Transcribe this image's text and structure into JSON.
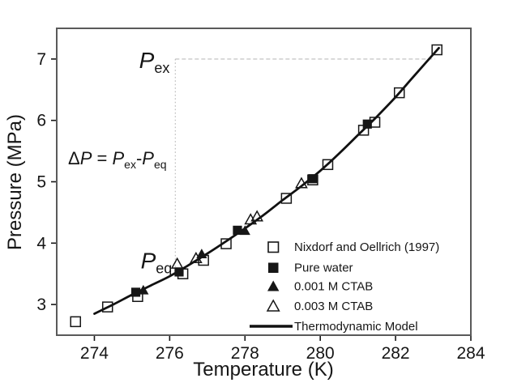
{
  "chart_data": {
    "type": "scatter",
    "title": "",
    "xlabel": "Temperature (K)",
    "ylabel": "Pressure (MPa)",
    "xlim": [
      273,
      284
    ],
    "ylim": [
      2.5,
      7.5
    ],
    "xticks": [
      274,
      276,
      278,
      280,
      282,
      284
    ],
    "yticks": [
      3,
      4,
      5,
      6,
      7
    ],
    "grid": false,
    "legend_position": "inside lower right",
    "colors": {
      "marker": "#161616",
      "line": "#111111",
      "guide": "#bcbcbc",
      "frame": "#5a5a5a"
    },
    "series": [
      {
        "name": "Nixdorf and Oellrich (1997)",
        "marker": "open-square",
        "points": [
          [
            273.5,
            2.72
          ],
          [
            274.35,
            2.96
          ],
          [
            275.15,
            3.13
          ],
          [
            276.35,
            3.5
          ],
          [
            276.9,
            3.72
          ],
          [
            277.5,
            3.99
          ],
          [
            279.1,
            4.73
          ],
          [
            279.8,
            5.03
          ],
          [
            280.2,
            5.28
          ],
          [
            281.15,
            5.84
          ],
          [
            281.45,
            5.97
          ],
          [
            282.1,
            6.45
          ],
          [
            283.1,
            7.15
          ]
        ]
      },
      {
        "name": "Pure water",
        "marker": "filled-square",
        "points": [
          [
            275.1,
            3.2
          ],
          [
            276.25,
            3.53
          ],
          [
            277.8,
            4.21
          ],
          [
            279.8,
            5.05
          ],
          [
            281.25,
            5.94
          ]
        ]
      },
      {
        "name": "0.001 M CTAB",
        "marker": "filled-triangle",
        "points": [
          [
            275.3,
            3.23
          ],
          [
            276.85,
            3.82
          ],
          [
            278.0,
            4.2
          ]
        ]
      },
      {
        "name": "0.003 M CTAB",
        "marker": "open-triangle",
        "points": [
          [
            276.2,
            3.66
          ],
          [
            276.7,
            3.75
          ],
          [
            278.15,
            4.38
          ],
          [
            278.32,
            4.43
          ],
          [
            279.5,
            4.97
          ]
        ]
      },
      {
        "name": "Thermodynamic Model",
        "marker": "line",
        "points": [
          [
            274.0,
            2.85
          ],
          [
            274.5,
            3.0
          ],
          [
            275.0,
            3.16
          ],
          [
            275.5,
            3.31
          ],
          [
            276.0,
            3.46
          ],
          [
            276.5,
            3.64
          ],
          [
            277.0,
            3.83
          ],
          [
            277.5,
            4.03
          ],
          [
            278.0,
            4.24
          ],
          [
            278.5,
            4.46
          ],
          [
            279.0,
            4.7
          ],
          [
            279.5,
            4.93
          ],
          [
            280.0,
            5.18
          ],
          [
            280.5,
            5.46
          ],
          [
            281.0,
            5.76
          ],
          [
            281.5,
            6.06
          ],
          [
            282.0,
            6.38
          ],
          [
            282.5,
            6.73
          ],
          [
            283.15,
            7.18
          ]
        ]
      }
    ],
    "annotations": {
      "p_ex": {
        "symbol": "P",
        "sub": "ex"
      },
      "p_eq": {
        "symbol": "P",
        "sub": "eq"
      },
      "delta_formula": {
        "delta": "Δ",
        "p": "P",
        "equals": "=",
        "minus": "-"
      },
      "guides": {
        "t": 276.15,
        "p_top": 7.0,
        "p_bottom": 3.55,
        "t_end": 283.05
      }
    }
  }
}
